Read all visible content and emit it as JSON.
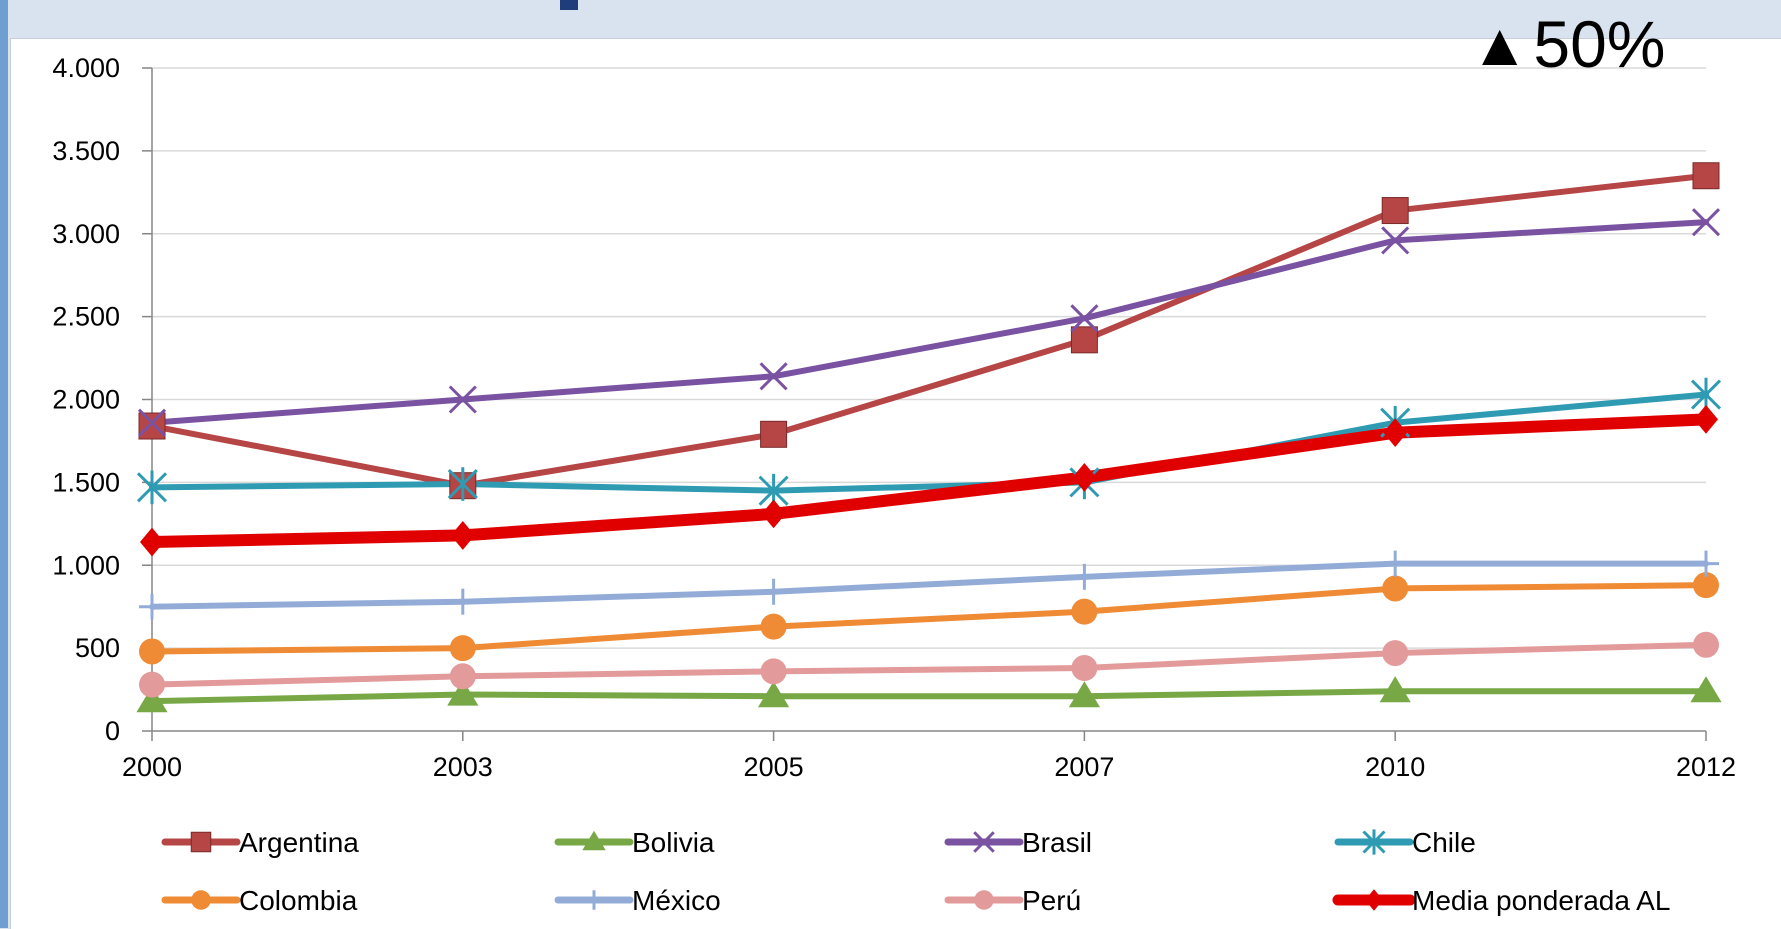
{
  "annotation": {
    "symbol": "▲",
    "text": "50%"
  },
  "chart_data": {
    "type": "line",
    "title": "",
    "xlabel": "",
    "ylabel": "",
    "x": [
      "2000",
      "2003",
      "2005",
      "2007",
      "2010",
      "2012"
    ],
    "ylim": [
      0,
      4000
    ],
    "yticks": [
      0,
      500,
      1000,
      1500,
      2000,
      2500,
      3000,
      3500,
      4000
    ],
    "ytick_labels": [
      "0",
      "500",
      "1.000",
      "1.500",
      "2.000",
      "2.500",
      "3.000",
      "3.500",
      "4.000"
    ],
    "grid": true,
    "legend_position": "bottom",
    "series": [
      {
        "name": "Argentina",
        "color": "#b64545",
        "marker": "square",
        "values": [
          1840,
          1480,
          1790,
          2360,
          3140,
          3350
        ]
      },
      {
        "name": "Bolivia",
        "color": "#77a845",
        "marker": "triangle",
        "values": [
          180,
          220,
          210,
          210,
          240,
          240
        ]
      },
      {
        "name": "Brasil",
        "color": "#7a52a2",
        "marker": "x",
        "values": [
          1860,
          2000,
          2140,
          2490,
          2960,
          3070
        ]
      },
      {
        "name": "Chile",
        "color": "#2f9bb3",
        "marker": "star",
        "values": [
          1470,
          1490,
          1450,
          1500,
          1860,
          2030
        ]
      },
      {
        "name": "Colombia",
        "color": "#ef8a35",
        "marker": "circle",
        "values": [
          480,
          500,
          630,
          720,
          860,
          880
        ]
      },
      {
        "name": "México",
        "color": "#93acd7",
        "marker": "plus",
        "values": [
          750,
          780,
          840,
          930,
          1010,
          1010
        ]
      },
      {
        "name": "Perú",
        "color": "#e39a9a",
        "marker": "circle",
        "values": [
          280,
          330,
          360,
          380,
          470,
          520
        ]
      },
      {
        "name": "Media ponderada AL",
        "color": "#e00000",
        "marker": "diamond",
        "values": [
          1140,
          1180,
          1310,
          1530,
          1800,
          1880
        ]
      }
    ]
  }
}
